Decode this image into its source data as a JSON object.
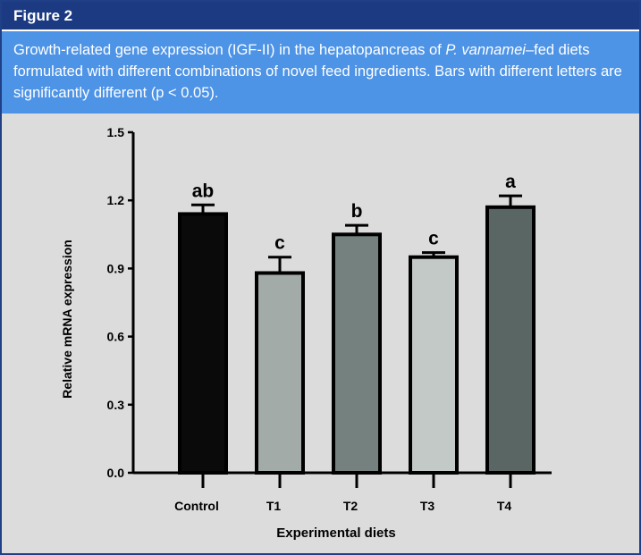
{
  "figure_label": "Figure 2",
  "caption": {
    "before_italic": "Growth-related gene expression (IGF-II) in the hepatopancreas of ",
    "italic": "P. vannamei",
    "after_italic": "–fed diets formulated with different combinations of novel feed ingredients. Bars with different letters are significantly different (p < 0.05)."
  },
  "colors": {
    "header_bg": "#1b3a82",
    "caption_bg": "#4d93e6",
    "plot_bg": "#dcdcdc"
  },
  "chart_data": {
    "type": "bar",
    "categories": [
      "Control",
      "T1",
      "T2",
      "T3",
      "T4"
    ],
    "values": [
      1.14,
      0.88,
      1.05,
      0.95,
      1.17
    ],
    "error": [
      0.04,
      0.07,
      0.04,
      0.02,
      0.05
    ],
    "significance_letters": [
      "ab",
      "c",
      "b",
      "c",
      "a"
    ],
    "bar_colors": [
      "#0a0a0a",
      "#a3aba9",
      "#74817e",
      "#c3c9c7",
      "#5a6664"
    ],
    "xlabel": "Experimental diets",
    "ylabel": "Relative mRNA expression",
    "ylim": [
      0,
      1.5
    ],
    "yticks": [
      "0.0",
      "0.3",
      "0.6",
      "0.9",
      "1.2",
      "1.5"
    ],
    "grid": false
  }
}
